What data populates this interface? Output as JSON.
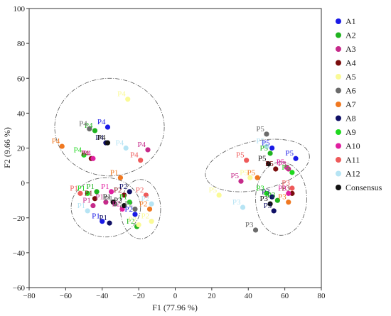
{
  "chart_data": {
    "type": "scatter",
    "title": "",
    "xlabel": "F1 (77.96 %)",
    "ylabel": "F2 (9.66 %)",
    "xlim": [
      -80,
      80
    ],
    "ylim": [
      -60,
      100
    ],
    "xticks": [
      "−80",
      "−60",
      "−40",
      "−20",
      "0",
      "20",
      "40",
      "60",
      "80"
    ],
    "yticks": [
      "−60",
      "−40",
      "−20",
      "0",
      "20",
      "40",
      "60",
      "80",
      "100"
    ],
    "xtick_values": [
      -80,
      -60,
      -40,
      -20,
      0,
      20,
      40,
      60,
      80
    ],
    "ytick_values": [
      -60,
      -40,
      -20,
      0,
      20,
      40,
      60,
      80,
      100
    ],
    "grid": false,
    "legend_position": "right",
    "series": [
      {
        "name": "A1",
        "color": "#1a1ae6",
        "points": [
          {
            "x": -40,
            "y": -22,
            "label": "P1"
          },
          {
            "x": -37,
            "y": 32,
            "label": "P4"
          },
          {
            "x": -22,
            "y": -18,
            "label": "P2"
          },
          {
            "x": 53,
            "y": 20,
            "label": "P5"
          },
          {
            "x": 66,
            "y": 14,
            "label": "P5"
          }
        ]
      },
      {
        "name": "A2",
        "color": "#1fb31f",
        "points": [
          {
            "x": -44,
            "y": 30,
            "label": "P4"
          },
          {
            "x": -43,
            "y": -5,
            "label": "P1"
          },
          {
            "x": -21,
            "y": -25,
            "label": "P2"
          },
          {
            "x": 52,
            "y": 17,
            "label": "P5"
          },
          {
            "x": 56,
            "y": -10,
            "label": "P3"
          }
        ]
      },
      {
        "name": "A3",
        "color": "#c62a8a",
        "points": [
          {
            "x": -45,
            "y": -13,
            "label": "P1"
          },
          {
            "x": -38,
            "y": -11,
            "label": "P1"
          },
          {
            "x": -15,
            "y": 19,
            "label": "P4"
          },
          {
            "x": 36,
            "y": 1,
            "label": "P5"
          },
          {
            "x": 62,
            "y": 8,
            "label": "P3"
          }
        ]
      },
      {
        "name": "A4",
        "color": "#7a0d0d",
        "points": [
          {
            "x": -46,
            "y": 14,
            "label": "P4"
          },
          {
            "x": -44,
            "y": -9,
            "label": "P1"
          },
          {
            "x": -28,
            "y": -7,
            "label": "P2"
          },
          {
            "x": 55,
            "y": 8,
            "label": "P5"
          },
          {
            "x": 64,
            "y": -6,
            "label": "P3"
          }
        ]
      },
      {
        "name": "A5",
        "color": "#fafa96",
        "points": [
          {
            "x": -26,
            "y": 48,
            "label": "P4"
          },
          {
            "x": -13,
            "y": -22,
            "label": "P2"
          },
          {
            "x": -20,
            "y": -24,
            "label": "P2"
          },
          {
            "x": 24,
            "y": -7,
            "label": "P5"
          },
          {
            "x": 41,
            "y": 3,
            "label": "P5"
          }
        ]
      },
      {
        "name": "A6",
        "color": "#6b6b6b",
        "points": [
          {
            "x": -47,
            "y": 31,
            "label": "P4"
          },
          {
            "x": -33,
            "y": -12,
            "label": "P1"
          },
          {
            "x": -22,
            "y": -15,
            "label": "P2"
          },
          {
            "x": 50,
            "y": 28,
            "label": "P5"
          },
          {
            "x": 44,
            "y": -27,
            "label": "P3"
          }
        ]
      },
      {
        "name": "A7",
        "color": "#f07820",
        "points": [
          {
            "x": -62,
            "y": 21,
            "label": "P4"
          },
          {
            "x": -30,
            "y": 3,
            "label": "P1"
          },
          {
            "x": -14,
            "y": -15,
            "label": "P2"
          },
          {
            "x": 45,
            "y": 3,
            "label": "P5"
          },
          {
            "x": 62,
            "y": -11,
            "label": "P3"
          }
        ]
      },
      {
        "name": "A8",
        "color": "#101066",
        "points": [
          {
            "x": -38,
            "y": 23,
            "label": "P4"
          },
          {
            "x": -36,
            "y": -23,
            "label": "P1"
          },
          {
            "x": -25,
            "y": -5,
            "label": "P2"
          },
          {
            "x": 53,
            "y": -8,
            "label": "P3"
          },
          {
            "x": 54,
            "y": -16,
            "label": "P3"
          }
        ]
      },
      {
        "name": "A9",
        "color": "#1fd81f",
        "points": [
          {
            "x": -48,
            "y": -6,
            "label": "P1"
          },
          {
            "x": -50,
            "y": 16,
            "label": "P4"
          },
          {
            "x": -25,
            "y": -11,
            "label": "P1"
          },
          {
            "x": 50,
            "y": -6,
            "label": "P3"
          },
          {
            "x": 64,
            "y": 6,
            "label": "P5"
          }
        ]
      },
      {
        "name": "A10",
        "color": "#e01fa0",
        "points": [
          {
            "x": -45,
            "y": 14,
            "label": "P4"
          },
          {
            "x": -35,
            "y": -5,
            "label": "P1"
          },
          {
            "x": -29,
            "y": -15,
            "label": "P2"
          },
          {
            "x": 61,
            "y": 9,
            "label": "P5"
          },
          {
            "x": 62,
            "y": -6,
            "label": "P3"
          }
        ]
      },
      {
        "name": "A11",
        "color": "#ee5a5a",
        "points": [
          {
            "x": -52,
            "y": -6,
            "label": "P1"
          },
          {
            "x": -19,
            "y": 13,
            "label": "P4"
          },
          {
            "x": -16,
            "y": -7,
            "label": "P2"
          },
          {
            "x": 39,
            "y": 13,
            "label": "P5"
          },
          {
            "x": 64,
            "y": -3,
            "label": "P3"
          }
        ]
      },
      {
        "name": "A12",
        "color": "#b6e4f4",
        "points": [
          {
            "x": -48,
            "y": -16,
            "label": "P1"
          },
          {
            "x": -27,
            "y": 20,
            "label": "P4"
          },
          {
            "x": -13,
            "y": -12,
            "label": "P2"
          },
          {
            "x": 37,
            "y": -14,
            "label": "P3"
          },
          {
            "x": 50,
            "y": 21,
            "label": "P5"
          }
        ]
      },
      {
        "name": "Consensus",
        "color": "#111111",
        "points": [
          {
            "x": -37,
            "y": 23,
            "label": "P4"
          },
          {
            "x": -34,
            "y": -11,
            "label": "P1"
          },
          {
            "x": -28,
            "y": -13,
            "label": "P2"
          },
          {
            "x": 51,
            "y": 11,
            "label": "P5"
          },
          {
            "x": 52,
            "y": -12,
            "label": "P3"
          }
        ]
      }
    ]
  }
}
